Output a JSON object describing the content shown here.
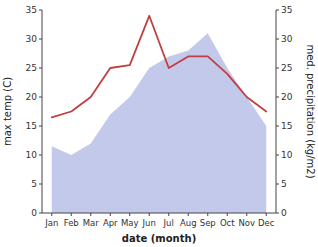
{
  "chart_data": {
    "type": "line",
    "categories": [
      "Jan",
      "Feb",
      "Mar",
      "Apr",
      "May",
      "Jun",
      "Jul",
      "Aug",
      "Sep",
      "Oct",
      "Nov",
      "Dec"
    ],
    "xlabel": "date (month)",
    "ylabel": "max temp (C)",
    "y2label": "med. precipitation (kg/m2)",
    "series": [
      {
        "type": "area",
        "color": "#b8c0e8",
        "values": [
          11.5,
          10,
          12,
          17,
          20,
          25,
          27,
          28,
          31,
          25,
          20,
          15
        ]
      },
      {
        "type": "line",
        "color": "#c04040",
        "axis": "y2",
        "values": [
          16.5,
          17.5,
          20,
          25,
          25.5,
          34,
          25,
          27,
          27,
          24,
          20,
          17.5
        ]
      }
    ],
    "ylim": [
      0,
      35
    ],
    "yticks": [
      0,
      5,
      10,
      15,
      20,
      25,
      30,
      35
    ],
    "y2lim": [
      0,
      35
    ],
    "y2ticks": [
      0,
      5,
      10,
      15,
      20,
      25,
      30,
      35
    ],
    "grid": false
  }
}
